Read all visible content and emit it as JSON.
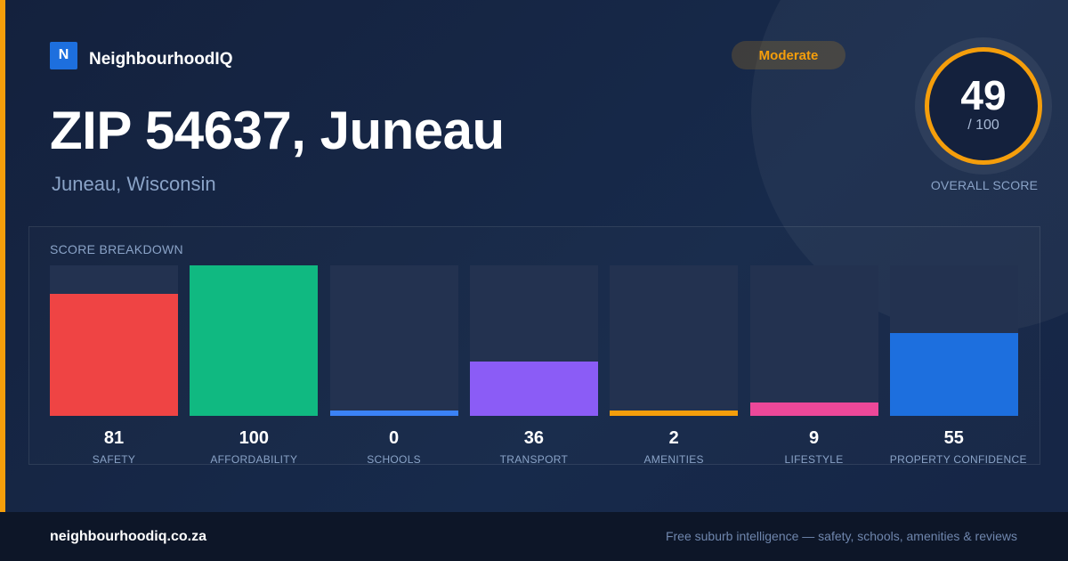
{
  "brand": {
    "logo_letter": "N",
    "name": "NeighbourhoodIQ"
  },
  "badge": {
    "label": "Moderate",
    "color": "#f59e0b"
  },
  "location": {
    "title": "ZIP 54637, Juneau",
    "subtitle": "Juneau, Wisconsin"
  },
  "overall_score": {
    "value": "49",
    "max": "/ 100",
    "caption": "OVERALL SCORE"
  },
  "breakdown": {
    "title": "SCORE BREAKDOWN",
    "items": [
      {
        "label": "SAFETY",
        "value": "81",
        "score": 81,
        "color": "#ef4444"
      },
      {
        "label": "AFFORDABILITY",
        "value": "100",
        "score": 100,
        "color": "#10b981"
      },
      {
        "label": "SCHOOLS",
        "value": "0",
        "score": 0,
        "color": "#3b82f6"
      },
      {
        "label": "TRANSPORT",
        "value": "36",
        "score": 36,
        "color": "#8b5cf6"
      },
      {
        "label": "AMENITIES",
        "value": "2",
        "score": 2,
        "color": "#f59e0b"
      },
      {
        "label": "LIFESTYLE",
        "value": "9",
        "score": 9,
        "color": "#ec4899"
      },
      {
        "label": "PROPERTY CONFIDENCE",
        "value": "55",
        "score": 55,
        "color": "#1d6fde"
      }
    ]
  },
  "footer": {
    "domain": "neighbourhoodiq.co.za",
    "tagline": "Free suburb intelligence — safety, schools, amenities & reviews"
  }
}
